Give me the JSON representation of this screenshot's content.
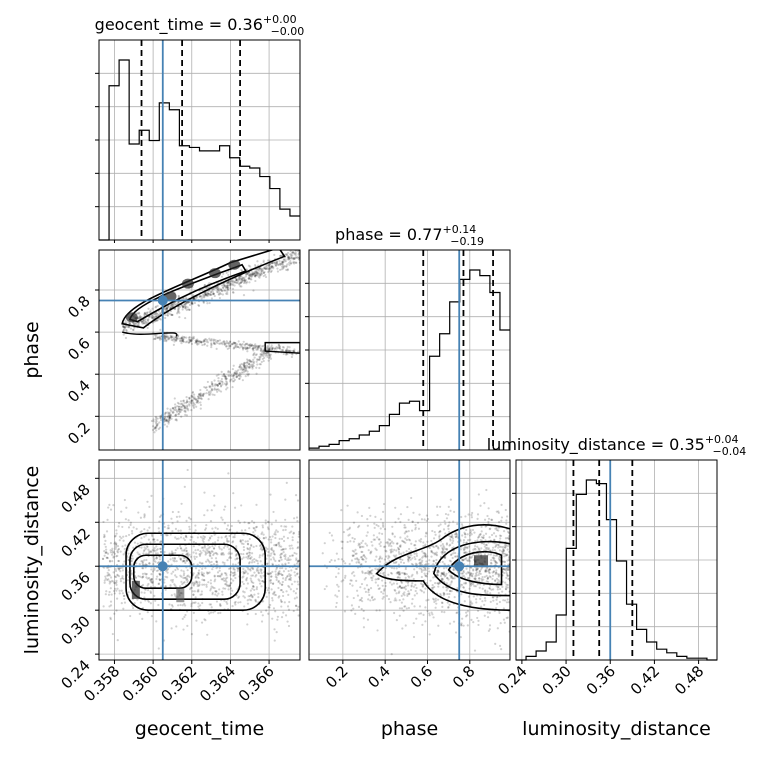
{
  "chart_data": {
    "type": "corner",
    "parameters": [
      "geocent_time",
      "phase",
      "luminosity_distance"
    ],
    "truths": {
      "geocent_time": 0.3605,
      "phase": 0.75,
      "luminosity_distance": 0.36
    },
    "truth_color": "#4682b4",
    "ranges": {
      "geocent_time": [
        0.3572,
        0.3676
      ],
      "phase": [
        0.04,
        0.99
      ],
      "luminosity_distance": [
        0.232,
        0.505
      ]
    },
    "ticks": {
      "geocent_time": [
        "0.358",
        "0.360",
        "0.362",
        "0.364",
        "0.366"
      ],
      "phase": [
        "0.2",
        "0.4",
        "0.6",
        "0.8"
      ],
      "luminosity_distance": [
        "0.24",
        "0.30",
        "0.36",
        "0.42",
        "0.48"
      ]
    },
    "axis_labels": {
      "geocent_time": "geocent_time",
      "phase": "phase",
      "luminosity_distance": "luminosity_distance"
    },
    "titles": [
      {
        "param": "geocent_time",
        "prefix": "geocent_time = 0.36",
        "sup": "+0.00",
        "sub": "−0.00"
      },
      {
        "param": "phase",
        "prefix": "phase = 0.77",
        "sup": "+0.14",
        "sub": "−0.19"
      },
      {
        "param": "luminosity_distance",
        "prefix": "luminosity_distance = 0.35",
        "sup": "+0.04",
        "sub": "−0.04"
      }
    ],
    "quantiles": {
      "geocent_time": [
        0.3594,
        0.3615,
        0.3645
      ],
      "phase": [
        0.58,
        0.77,
        0.91
      ],
      "luminosity_distance": [
        0.31,
        0.345,
        0.39
      ]
    },
    "histograms": {
      "geocent_time": {
        "bin_start": 0.3572,
        "bin_width": 0.00052,
        "counts": [
          0,
          0.9,
          1.05,
          0.56,
          0.64,
          0.58,
          0.8,
          0.76,
          0.55,
          0.54,
          0.52,
          0.52,
          0.55,
          0.48,
          0.43,
          0.42,
          0.37,
          0.3,
          0.18,
          0.14
        ]
      },
      "phase": {
        "bin_start": 0.04,
        "bin_width": 0.0475,
        "counts": [
          0.01,
          0.02,
          0.03,
          0.05,
          0.06,
          0.08,
          0.1,
          0.13,
          0.19,
          0.25,
          0.26,
          0.21,
          0.5,
          0.62,
          0.79,
          0.91,
          0.96,
          0.93,
          0.84,
          0.64
        ]
      },
      "luminosity_distance": {
        "bin_start": 0.232,
        "bin_width": 0.01365,
        "counts": [
          0.0,
          0.02,
          0.05,
          0.1,
          0.25,
          0.62,
          0.92,
          1.0,
          0.98,
          0.78,
          0.55,
          0.31,
          0.17,
          0.1,
          0.06,
          0.04,
          0.02,
          0.01,
          0.01,
          0.0
        ]
      }
    }
  }
}
